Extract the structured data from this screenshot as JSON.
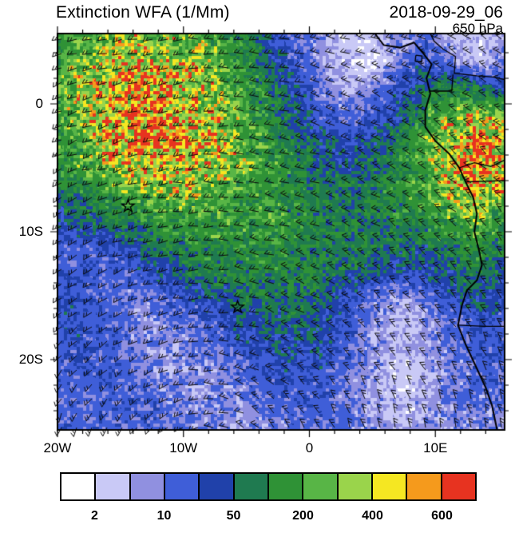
{
  "header": {
    "title": "Extinction WFA (1/Mm)",
    "datetime": "2018-09-29_06",
    "level": "650 hPa"
  },
  "chart_data": {
    "type": "heatmap",
    "title": "Extinction WFA (1/Mm)",
    "datetime": "2018-09-29_06",
    "pressure_level": "650 hPa",
    "units": "1/Mm",
    "xlabel": "",
    "ylabel": "",
    "lon_range": [
      -20,
      15.5
    ],
    "lat_range": [
      -25.5,
      5.5
    ],
    "minor_tick_deg": 2,
    "x_ticks": [
      {
        "lon": -20,
        "label": "20W"
      },
      {
        "lon": -10,
        "label": "10W"
      },
      {
        "lon": 0,
        "label": "0"
      },
      {
        "lon": 10,
        "label": "10E"
      }
    ],
    "y_ticks": [
      {
        "lat": 0,
        "label": "0"
      },
      {
        "lat": -10,
        "label": "10S"
      },
      {
        "lat": -20,
        "label": "20S"
      }
    ],
    "colorbar": {
      "levels": [
        2,
        5,
        10,
        25,
        50,
        100,
        200,
        300,
        400,
        500,
        600
      ],
      "tick_labels": [
        "2",
        "10",
        "50",
        "200",
        "400",
        "600"
      ],
      "colors": [
        "#FFFFFF",
        "#C9C9F6",
        "#9090E0",
        "#3F5ED8",
        "#2041AA",
        "#1F7A50",
        "#2F9236",
        "#58B546",
        "#9AD44B",
        "#F5E722",
        "#F59A1C",
        "#E73320"
      ]
    },
    "grid": {
      "lons": [
        -20,
        -17.91,
        -15.82,
        -13.74,
        -11.65,
        -9.56,
        -7.47,
        -5.38,
        -3.29,
        -1.21,
        0.88,
        2.97,
        5.06,
        7.15,
        9.24,
        11.32,
        13.41,
        15.5
      ],
      "lats": [
        5.5,
        3.43,
        1.37,
        -0.7,
        -2.77,
        -4.83,
        -6.9,
        -8.97,
        -11.03,
        -13.1,
        -15.17,
        -17.23,
        -19.3,
        -21.37,
        -23.43,
        -25.5
      ],
      "values": [
        [
          150,
          230,
          280,
          300,
          260,
          210,
          150,
          80,
          35,
          12,
          5,
          2.5,
          4,
          8,
          12,
          4,
          2.5,
          6
        ],
        [
          180,
          280,
          350,
          420,
          380,
          300,
          220,
          130,
          60,
          20,
          8,
          3,
          1.8,
          10,
          20,
          8,
          3,
          10
        ],
        [
          200,
          320,
          450,
          520,
          480,
          380,
          280,
          170,
          80,
          30,
          10,
          5,
          8,
          20,
          60,
          120,
          60,
          30
        ],
        [
          180,
          300,
          480,
          560,
          540,
          440,
          320,
          200,
          110,
          50,
          20,
          10,
          15,
          40,
          120,
          250,
          350,
          250
        ],
        [
          150,
          260,
          420,
          580,
          620,
          520,
          380,
          240,
          140,
          80,
          40,
          25,
          35,
          80,
          200,
          450,
          580,
          450
        ],
        [
          120,
          200,
          300,
          420,
          480,
          420,
          320,
          220,
          150,
          100,
          60,
          45,
          60,
          110,
          220,
          420,
          550,
          400
        ],
        [
          60,
          100,
          160,
          220,
          260,
          260,
          220,
          180,
          140,
          110,
          80,
          70,
          80,
          120,
          180,
          300,
          450,
          300
        ],
        [
          40,
          50,
          80,
          110,
          140,
          160,
          160,
          150,
          130,
          110,
          90,
          80,
          80,
          100,
          130,
          180,
          250,
          120
        ],
        [
          15,
          20,
          30,
          50,
          80,
          100,
          120,
          120,
          110,
          100,
          85,
          75,
          65,
          55,
          60,
          90,
          130,
          70
        ],
        [
          20,
          14,
          14,
          20,
          35,
          60,
          80,
          90,
          90,
          85,
          75,
          60,
          45,
          30,
          35,
          55,
          80,
          40
        ],
        [
          30,
          20,
          12,
          10,
          15,
          25,
          45,
          60,
          70,
          70,
          55,
          30,
          12,
          6,
          10,
          25,
          45,
          25
        ],
        [
          25,
          25,
          15,
          8,
          8,
          12,
          20,
          35,
          50,
          55,
          40,
          18,
          7,
          4,
          6,
          12,
          25,
          18
        ],
        [
          15,
          20,
          18,
          10,
          6,
          8,
          12,
          20,
          30,
          35,
          30,
          15,
          7,
          4,
          6,
          10,
          18,
          15
        ],
        [
          12,
          15,
          18,
          14,
          8,
          6,
          8,
          12,
          18,
          22,
          20,
          12,
          6,
          3,
          4,
          8,
          14,
          12
        ],
        [
          15,
          12,
          14,
          16,
          12,
          8,
          6,
          8,
          12,
          15,
          15,
          10,
          6,
          4,
          5,
          8,
          12,
          10
        ],
        [
          18,
          14,
          12,
          14,
          14,
          10,
          8,
          6,
          8,
          10,
          12,
          10,
          7,
          5,
          6,
          8,
          10,
          8
        ]
      ]
    },
    "markers": [
      {
        "symbol": "star",
        "lon": -14.4,
        "lat": -8.0
      },
      {
        "symbol": "star",
        "lon": -5.7,
        "lat": -15.9
      }
    ],
    "wind": {
      "barb_style": "black wind barbs over entire field",
      "high_center": {
        "lon": -8,
        "lat": -30
      }
    },
    "coastline": [
      [
        5.2,
        5.5
      ],
      [
        5.9,
        4.6
      ],
      [
        7.2,
        4.4
      ],
      [
        8.3,
        4.8
      ],
      [
        9.0,
        4.0
      ],
      [
        9.7,
        3.1
      ],
      [
        9.3,
        2.0
      ],
      [
        9.6,
        0.8
      ],
      [
        9.2,
        -0.5
      ],
      [
        9.2,
        -1.8
      ],
      [
        10.0,
        -2.9
      ],
      [
        11.1,
        -3.9
      ],
      [
        11.9,
        -5.0
      ],
      [
        12.4,
        -6.1
      ],
      [
        13.0,
        -7.3
      ],
      [
        13.3,
        -8.6
      ],
      [
        13.1,
        -10.0
      ],
      [
        13.5,
        -11.6
      ],
      [
        13.7,
        -12.6
      ],
      [
        13.3,
        -13.8
      ],
      [
        12.5,
        -14.6
      ],
      [
        12.1,
        -15.8
      ],
      [
        11.8,
        -17.3
      ],
      [
        12.4,
        -18.8
      ],
      [
        13.2,
        -20.5
      ],
      [
        14.0,
        -22.2
      ],
      [
        14.5,
        -23.6
      ],
      [
        14.9,
        -25.5
      ]
    ],
    "borders": [
      [
        [
          9.6,
          5.5
        ],
        [
          9.9,
          4.9
        ],
        [
          10.6,
          4.3
        ],
        [
          11.6,
          3.7
        ],
        [
          11.5,
          2.4
        ],
        [
          13.3,
          2.2
        ],
        [
          14.6,
          2.1
        ],
        [
          15.5,
          1.9
        ]
      ],
      [
        [
          9.6,
          1.0
        ],
        [
          11.3,
          1.0
        ],
        [
          11.4,
          2.3
        ]
      ],
      [
        [
          11.9,
          -5.0
        ],
        [
          13.1,
          -4.6
        ],
        [
          14.4,
          -4.9
        ],
        [
          15.5,
          -4.4
        ]
      ],
      [
        [
          12.4,
          -6.1
        ],
        [
          15.5,
          -6.0
        ]
      ],
      [
        [
          11.8,
          -17.3
        ],
        [
          13.9,
          -17.4
        ],
        [
          15.5,
          -17.4
        ]
      ],
      [
        [
          8.45,
          3.8
        ],
        [
          8.95,
          3.75
        ],
        [
          8.9,
          3.25
        ],
        [
          8.4,
          3.35
        ],
        [
          8.45,
          3.8
        ]
      ]
    ]
  }
}
